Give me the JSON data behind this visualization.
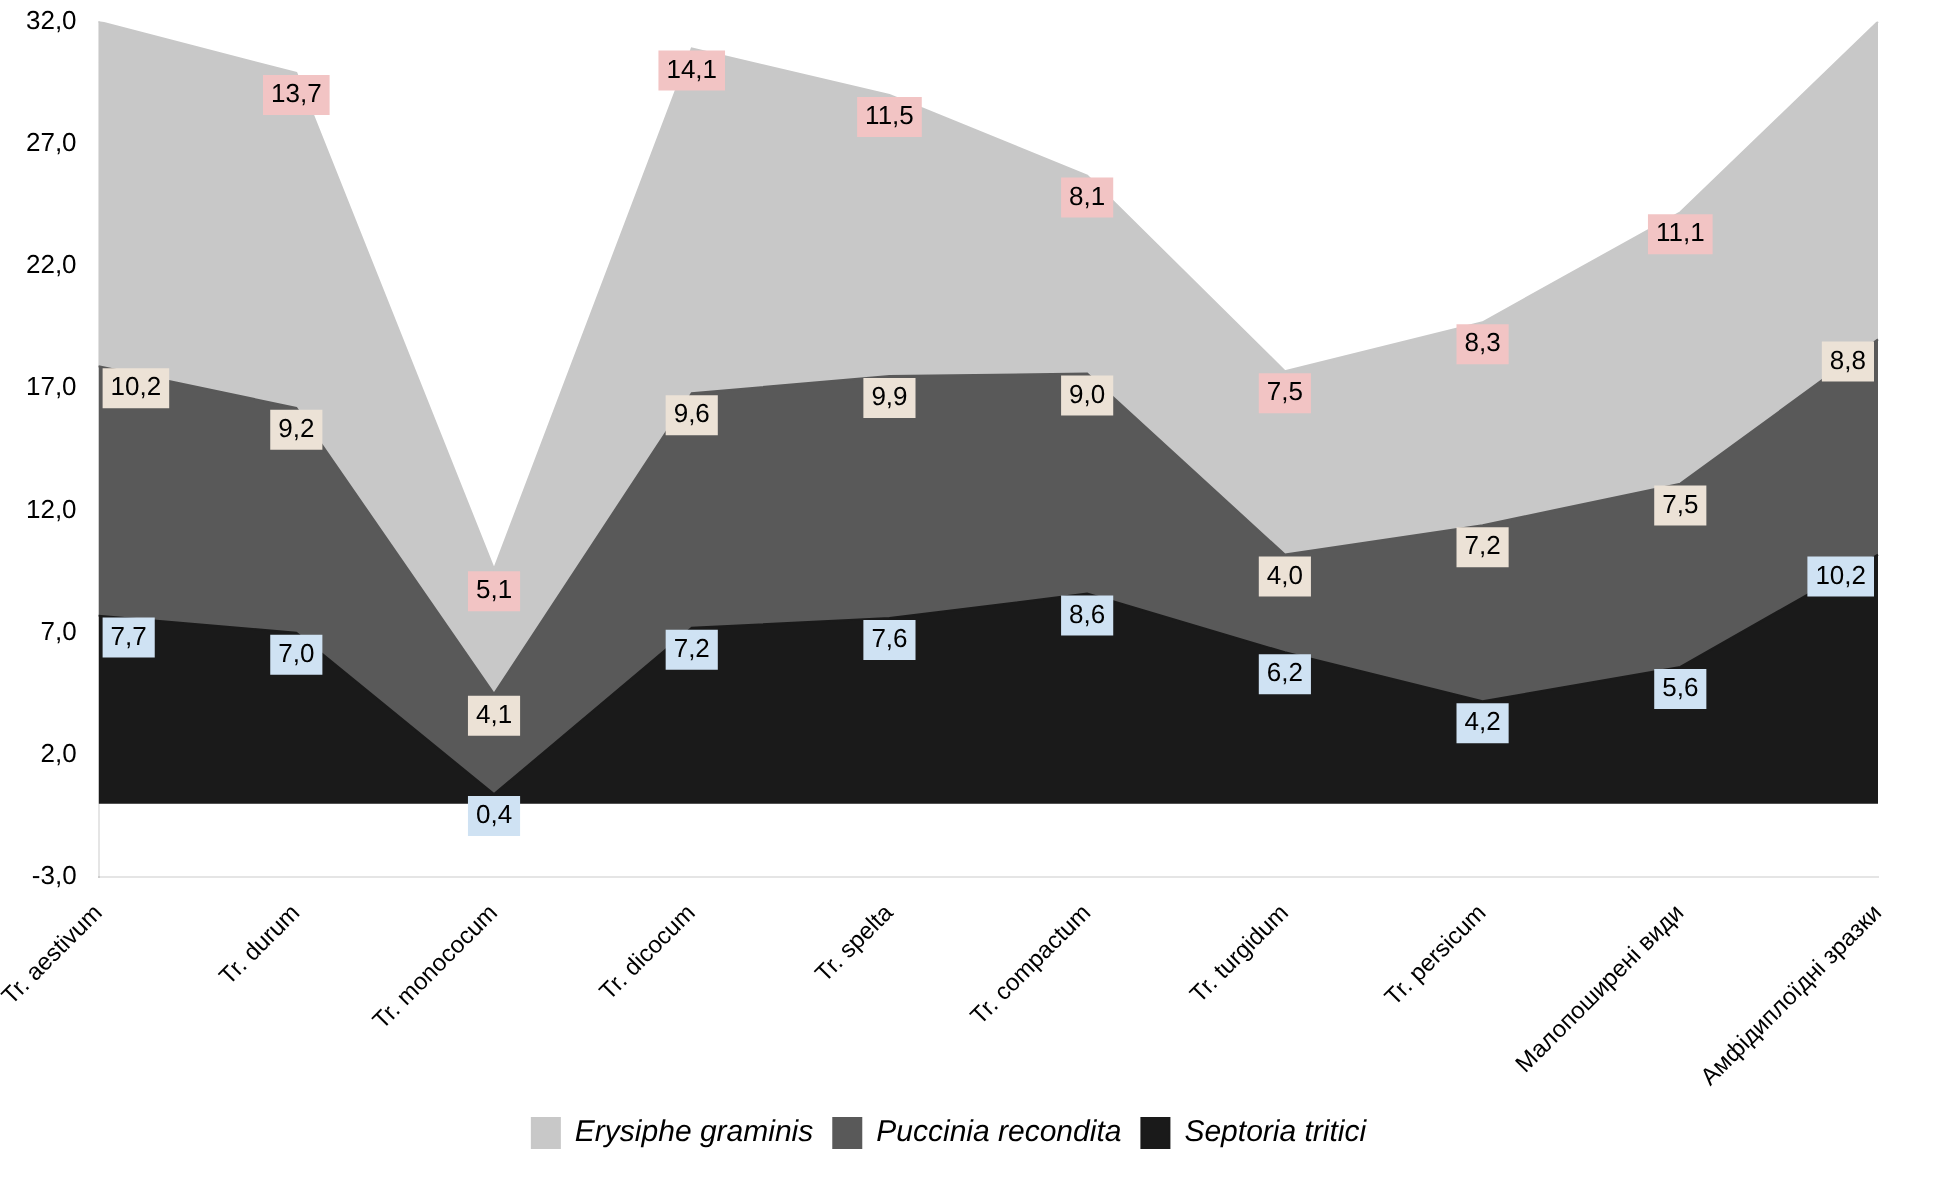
{
  "chart_data": {
    "type": "area",
    "stacked": true,
    "categories": [
      "Tr. aestivum",
      "Tr. durum",
      "Tr. monococum",
      "Tr. dicocum",
      "Tr. spelta",
      "Tr. compactum",
      "Tr. turgidum",
      "Tr. persicum",
      "Малопоширені види",
      "Амфідиплоїдні зразки"
    ],
    "series": [
      {
        "name": "Septoria tritici",
        "color": "#1a1a1a",
        "values": [
          7.7,
          7.0,
          0.4,
          7.2,
          7.6,
          8.6,
          6.2,
          4.2,
          5.6,
          10.2
        ],
        "value_labels": [
          "7,7",
          "7,0",
          "0,4",
          "7,2",
          "7,6",
          "8,6",
          "6,2",
          "4,2",
          "5,6",
          "10,2"
        ]
      },
      {
        "name": "Puccinia recondita",
        "color": "#595959",
        "values": [
          10.2,
          9.2,
          4.1,
          9.6,
          9.9,
          9.0,
          4.0,
          7.2,
          7.5,
          8.8
        ],
        "value_labels": [
          "10,2",
          "9,2",
          "4,1",
          "9,6",
          "9,9",
          "9,0",
          "4,0",
          "7,2",
          "7,5",
          "8,8"
        ]
      },
      {
        "name": "Erysiphe graminis",
        "color": "#c8c8c8",
        "values": [
          14.1,
          13.7,
          5.1,
          14.1,
          11.5,
          8.1,
          7.5,
          8.3,
          11.1,
          13.0
        ],
        "value_labels": [
          null,
          "13,7",
          "5,1",
          "14,1",
          "11,5",
          "8,1",
          "7,5",
          "8,3",
          "11,1",
          null
        ]
      }
    ],
    "ylim": [
      -3,
      32
    ],
    "yticks": [
      {
        "value": -3,
        "label": "-3,0"
      },
      {
        "value": 2,
        "label": "2,0"
      },
      {
        "value": 7,
        "label": "7,0"
      },
      {
        "value": 12,
        "label": "12,0"
      },
      {
        "value": 17,
        "label": "17,0"
      },
      {
        "value": 22,
        "label": "22,0"
      },
      {
        "value": 27,
        "label": "27,0"
      },
      {
        "value": 32,
        "label": "32,0"
      }
    ],
    "grid": false,
    "legend": "bottom"
  }
}
